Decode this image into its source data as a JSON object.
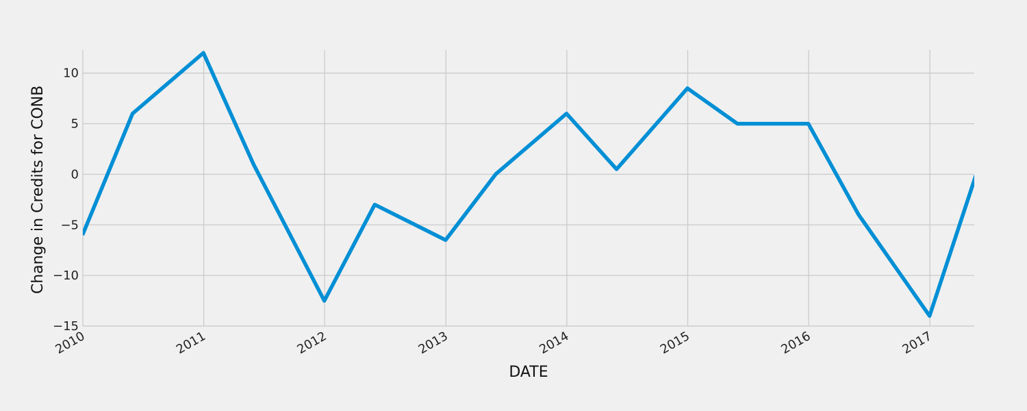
{
  "chart_data": {
    "type": "line",
    "title": "",
    "xlabel": "DATE",
    "ylabel": "Change in Credits for CONB",
    "x_ticks": [
      "2010",
      "2011",
      "2012",
      "2013",
      "2014",
      "2015",
      "2016",
      "2017"
    ],
    "y_ticks": [
      "−15",
      "−10",
      "−5",
      "0",
      "5",
      "10"
    ],
    "y_tick_values": [
      -15,
      -10,
      -5,
      0,
      5,
      10
    ],
    "xlim": [
      "2010-01-01",
      "2017-05-15"
    ],
    "ylim": [
      -15,
      13.5
    ],
    "grid": true,
    "legend": "none",
    "series": [
      {
        "color": "#008fd5",
        "x": [
          "2009-12-31",
          "2010-05-31",
          "2010-12-31",
          "2011-05-31",
          "2011-12-31",
          "2012-05-31",
          "2012-12-31",
          "2013-05-31",
          "2013-12-31",
          "2014-05-31",
          "2014-12-31",
          "2015-05-31",
          "2015-12-31",
          "2016-05-31",
          "2016-12-31",
          "2017-05-31"
        ],
        "values": [
          -6,
          6,
          12,
          1,
          -12.5,
          -3,
          -6.5,
          0,
          6,
          0.5,
          8.5,
          5,
          5,
          -4,
          -14,
          1
        ]
      }
    ]
  }
}
